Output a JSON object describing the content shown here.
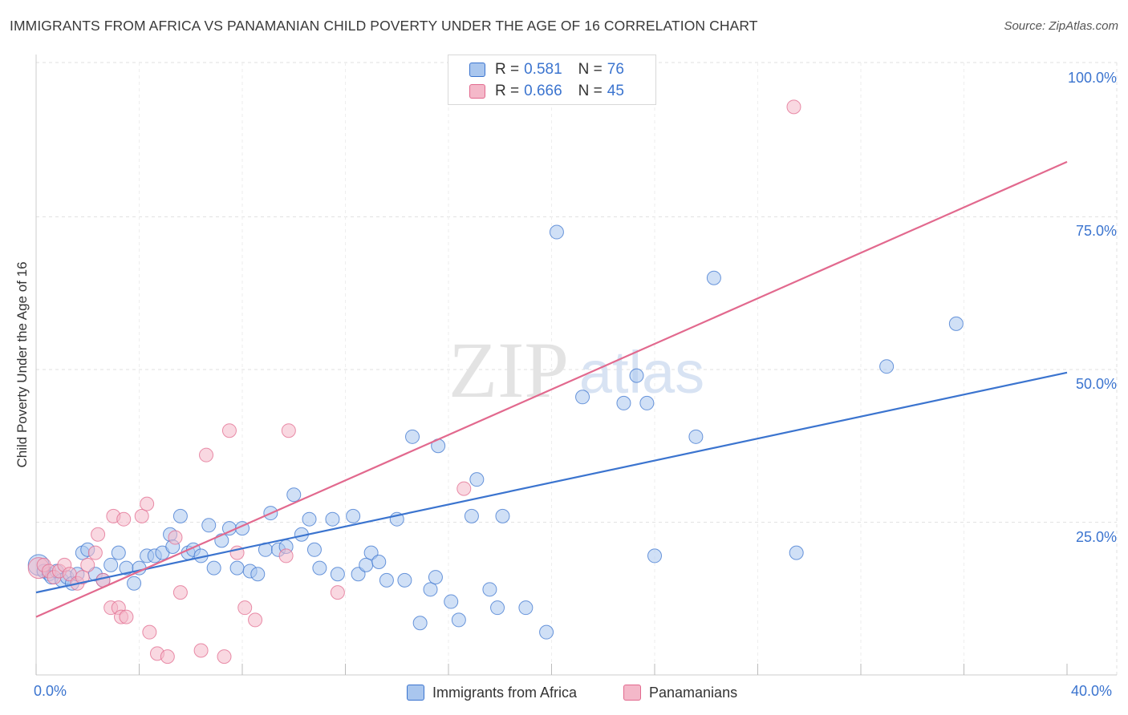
{
  "header": {
    "title": "IMMIGRANTS FROM AFRICA VS PANAMANIAN CHILD POVERTY UNDER THE AGE OF 16 CORRELATION CHART",
    "source": "Source: ZipAtlas.com"
  },
  "watermark": {
    "zip": "ZIP",
    "atlas": "atlas"
  },
  "colors": {
    "blue": "#3b74cf",
    "blue_fill": "#a9c6ee",
    "pink": "#e2698e",
    "pink_fill": "#f4b8c9",
    "axis_text": "#3b74cf"
  },
  "legend": {
    "rows": [
      {
        "r_label": "R =",
        "r_value": "0.581",
        "n_label": "N =",
        "n_value": "76"
      },
      {
        "r_label": "R =",
        "r_value": "0.666",
        "n_label": "N =",
        "n_value": "45"
      }
    ]
  },
  "bottom_legend": {
    "series1": "Immigrants from Africa",
    "series2": "Panamanians"
  },
  "chart_data": {
    "type": "scatter",
    "title": "IMMIGRANTS FROM AFRICA VS PANAMANIAN CHILD POVERTY UNDER THE AGE OF 16 CORRELATION CHART",
    "xlabel": "",
    "ylabel": "Child Poverty Under the Age of 16",
    "xlim": [
      0,
      40
    ],
    "ylim": [
      0,
      100
    ],
    "x_tick_labels": [
      "0.0%",
      "40.0%"
    ],
    "y_tick_labels": [
      "100.0%",
      "75.0%",
      "50.0%",
      "25.0%"
    ],
    "y_ticks": [
      100,
      75,
      50,
      25
    ],
    "grid": true,
    "series": [
      {
        "name": "Immigrants from Africa",
        "color": "#3b74cf",
        "trend": {
          "x": [
            0,
            40
          ],
          "y": [
            13.5,
            49.5
          ]
        },
        "points": [
          [
            0.1,
            18
          ],
          [
            0.3,
            17
          ],
          [
            0.5,
            16.5
          ],
          [
            0.6,
            16
          ],
          [
            0.8,
            17
          ],
          [
            1.0,
            15.5
          ],
          [
            1.2,
            16
          ],
          [
            1.4,
            15
          ],
          [
            1.6,
            16.5
          ],
          [
            1.8,
            20
          ],
          [
            2.0,
            20.5
          ],
          [
            2.3,
            16.5
          ],
          [
            2.6,
            15.5
          ],
          [
            2.9,
            18
          ],
          [
            3.2,
            20
          ],
          [
            3.5,
            17.5
          ],
          [
            3.8,
            15
          ],
          [
            4.0,
            17.5
          ],
          [
            4.3,
            19.5
          ],
          [
            4.6,
            19.5
          ],
          [
            4.9,
            20
          ],
          [
            5.2,
            23
          ],
          [
            5.3,
            21
          ],
          [
            5.6,
            26
          ],
          [
            5.9,
            20
          ],
          [
            6.1,
            20.5
          ],
          [
            6.4,
            19.5
          ],
          [
            6.7,
            24.5
          ],
          [
            6.9,
            17.5
          ],
          [
            7.2,
            22
          ],
          [
            7.5,
            24
          ],
          [
            7.8,
            17.5
          ],
          [
            8.0,
            24
          ],
          [
            8.3,
            17
          ],
          [
            8.6,
            16.5
          ],
          [
            8.9,
            20.5
          ],
          [
            9.1,
            26.5
          ],
          [
            9.4,
            20.5
          ],
          [
            9.7,
            21
          ],
          [
            10.0,
            29.5
          ],
          [
            10.3,
            23
          ],
          [
            10.6,
            25.5
          ],
          [
            10.8,
            20.5
          ],
          [
            11.0,
            17.5
          ],
          [
            11.5,
            25.5
          ],
          [
            11.7,
            16.5
          ],
          [
            12.3,
            26
          ],
          [
            12.5,
            16.5
          ],
          [
            12.8,
            18
          ],
          [
            13.0,
            20
          ],
          [
            13.3,
            18.5
          ],
          [
            13.6,
            15.5
          ],
          [
            14.0,
            25.5
          ],
          [
            14.3,
            15.5
          ],
          [
            14.6,
            39
          ],
          [
            14.9,
            8.5
          ],
          [
            15.3,
            14
          ],
          [
            15.5,
            16
          ],
          [
            15.6,
            37.5
          ],
          [
            16.1,
            12
          ],
          [
            16.4,
            9
          ],
          [
            16.9,
            26
          ],
          [
            17.1,
            32
          ],
          [
            17.6,
            14
          ],
          [
            17.9,
            11
          ],
          [
            18.1,
            26
          ],
          [
            19.0,
            11
          ],
          [
            19.8,
            7
          ],
          [
            20.2,
            72.5
          ],
          [
            21.2,
            45.5
          ],
          [
            22.8,
            44.5
          ],
          [
            23.3,
            49
          ],
          [
            23.7,
            44.5
          ],
          [
            24.0,
            19.5
          ],
          [
            25.6,
            39
          ],
          [
            26.3,
            65
          ],
          [
            29.5,
            20
          ],
          [
            33.0,
            50.5
          ],
          [
            35.7,
            57.5
          ]
        ]
      },
      {
        "name": "Panamanians",
        "color": "#e2698e",
        "trend": {
          "x": [
            0,
            40
          ],
          "y": [
            9.5,
            84
          ]
        },
        "points": [
          [
            0.1,
            17.5
          ],
          [
            0.3,
            18
          ],
          [
            0.5,
            17
          ],
          [
            0.7,
            16
          ],
          [
            0.9,
            17
          ],
          [
            1.1,
            18
          ],
          [
            1.3,
            16.5
          ],
          [
            1.6,
            15
          ],
          [
            1.8,
            16
          ],
          [
            2.0,
            18
          ],
          [
            2.3,
            20
          ],
          [
            2.4,
            23
          ],
          [
            2.6,
            15.5
          ],
          [
            2.9,
            11
          ],
          [
            3.0,
            26
          ],
          [
            3.2,
            11
          ],
          [
            3.3,
            9.5
          ],
          [
            3.4,
            25.5
          ],
          [
            3.5,
            9.5
          ],
          [
            4.1,
            26
          ],
          [
            4.3,
            28
          ],
          [
            4.4,
            7
          ],
          [
            4.7,
            3.5
          ],
          [
            5.1,
            3
          ],
          [
            5.4,
            22.5
          ],
          [
            5.6,
            13.5
          ],
          [
            6.4,
            4
          ],
          [
            6.6,
            36
          ],
          [
            7.3,
            3
          ],
          [
            7.5,
            40
          ],
          [
            7.8,
            20
          ],
          [
            8.1,
            11
          ],
          [
            8.5,
            9
          ],
          [
            9.8,
            40
          ],
          [
            9.7,
            19.5
          ],
          [
            11.7,
            13.5
          ],
          [
            16.6,
            30.5
          ],
          [
            29.4,
            93
          ]
        ]
      }
    ]
  }
}
